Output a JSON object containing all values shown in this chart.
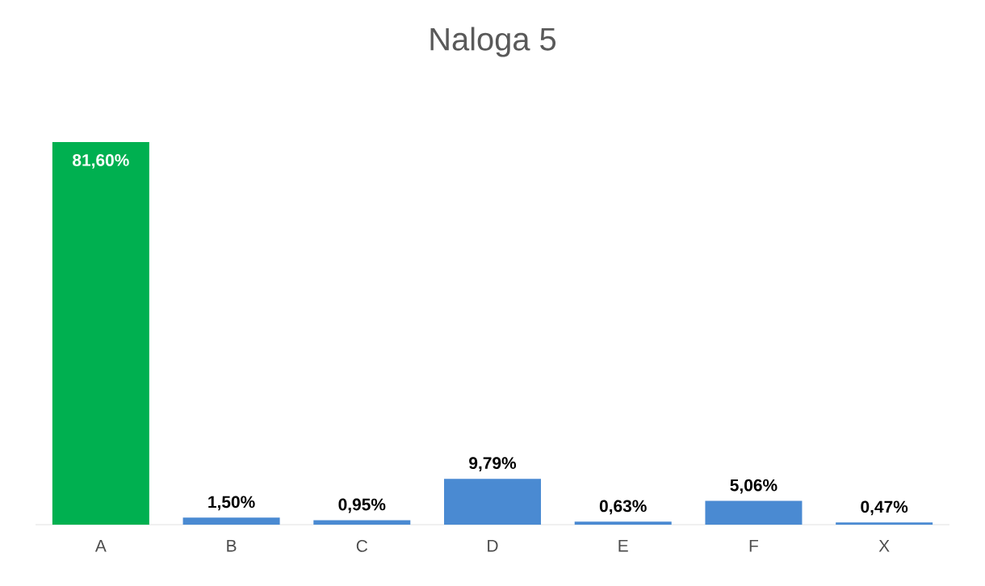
{
  "chart_data": {
    "type": "bar",
    "title": "Naloga 5",
    "categories": [
      "A",
      "B",
      "C",
      "D",
      "E",
      "F",
      "X"
    ],
    "values": [
      81.6,
      1.5,
      0.95,
      9.79,
      0.63,
      5.06,
      0.47
    ],
    "colors": [
      "#00b050",
      "#4a8ad2",
      "#4a8ad2",
      "#4a8ad2",
      "#4a8ad2",
      "#4a8ad2",
      "#4a8ad2"
    ],
    "value_labels": [
      "81,60%",
      "1,50%",
      "0,95%",
      "9,79%",
      "0,63%",
      "5,06%",
      "0,47%"
    ]
  }
}
